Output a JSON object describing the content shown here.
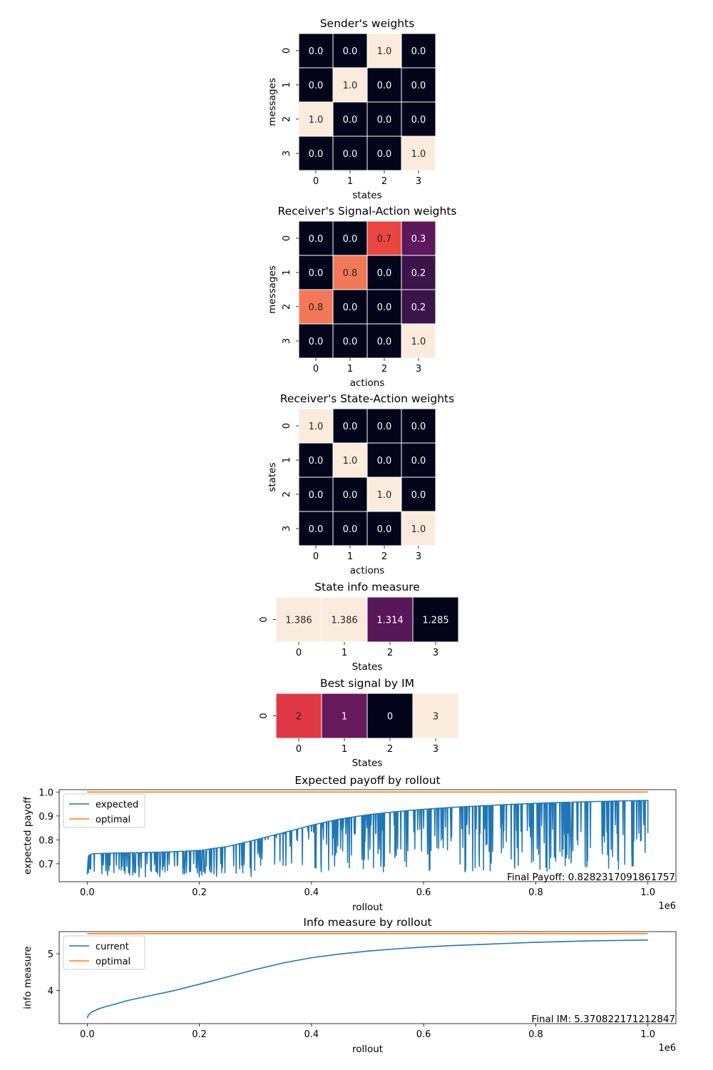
{
  "chart_data": [
    {
      "type": "heatmap",
      "title": "Sender's weights",
      "xlabel": "states",
      "ylabel": "messages",
      "xticks": [
        "0",
        "1",
        "2",
        "3"
      ],
      "yticks": [
        "0",
        "1",
        "2",
        "3"
      ],
      "decimals": 1,
      "values": [
        [
          0.0,
          0.0,
          1.0,
          0.0
        ],
        [
          0.0,
          1.0,
          0.0,
          0.0
        ],
        [
          1.0,
          0.0,
          0.0,
          0.0
        ],
        [
          0.0,
          0.0,
          0.0,
          1.0
        ]
      ],
      "labels": [
        [
          "0.0",
          "0.0",
          "1.0",
          "0.0"
        ],
        [
          "0.0",
          "1.0",
          "0.0",
          "0.0"
        ],
        [
          "1.0",
          "0.0",
          "0.0",
          "0.0"
        ],
        [
          "0.0",
          "0.0",
          "0.0",
          "1.0"
        ]
      ]
    },
    {
      "type": "heatmap",
      "title": "Receiver's Signal-Action weights",
      "xlabel": "actions",
      "ylabel": "messages",
      "xticks": [
        "0",
        "1",
        "2",
        "3"
      ],
      "yticks": [
        "0",
        "1",
        "2",
        "3"
      ],
      "decimals": 1,
      "values": [
        [
          0.0,
          0.0,
          0.7,
          0.3
        ],
        [
          0.0,
          0.8,
          0.0,
          0.2
        ],
        [
          0.8,
          0.0,
          0.0,
          0.2
        ],
        [
          0.0,
          0.0,
          0.0,
          1.0
        ]
      ],
      "labels": [
        [
          "0.0",
          "0.0",
          "0.7",
          "0.3"
        ],
        [
          "0.0",
          "0.8",
          "0.0",
          "0.2"
        ],
        [
          "0.8",
          "0.0",
          "0.0",
          "0.2"
        ],
        [
          "0.0",
          "0.0",
          "0.0",
          "1.0"
        ]
      ]
    },
    {
      "type": "heatmap",
      "title": "Receiver's State-Action weights",
      "xlabel": "actions",
      "ylabel": "states",
      "xticks": [
        "0",
        "1",
        "2",
        "3"
      ],
      "yticks": [
        "0",
        "1",
        "2",
        "3"
      ],
      "decimals": 1,
      "values": [
        [
          1.0,
          0.0,
          0.0,
          0.0
        ],
        [
          0.0,
          1.0,
          0.0,
          0.0
        ],
        [
          0.0,
          0.0,
          1.0,
          0.0
        ],
        [
          0.0,
          0.0,
          0.0,
          1.0
        ]
      ],
      "labels": [
        [
          "1.0",
          "0.0",
          "0.0",
          "0.0"
        ],
        [
          "0.0",
          "1.0",
          "0.0",
          "0.0"
        ],
        [
          "0.0",
          "0.0",
          "1.0",
          "0.0"
        ],
        [
          "0.0",
          "0.0",
          "0.0",
          "1.0"
        ]
      ]
    },
    {
      "type": "heatmap",
      "title": "State info measure",
      "xlabel": "States",
      "ylabel": "",
      "xticks": [
        "0",
        "1",
        "2",
        "3"
      ],
      "yticks": [
        "0"
      ],
      "decimals": 3,
      "values": [
        [
          1.386,
          1.386,
          1.314,
          1.285
        ]
      ],
      "labels": [
        [
          "1.386",
          "1.386",
          "1.314",
          "1.285"
        ]
      ]
    },
    {
      "type": "heatmap",
      "title": "Best signal by IM",
      "xlabel": "States",
      "ylabel": "",
      "xticks": [
        "0",
        "1",
        "2",
        "3"
      ],
      "yticks": [
        "0"
      ],
      "decimals": 0,
      "values": [
        [
          2,
          1,
          0,
          3
        ]
      ],
      "labels": [
        [
          "2",
          "1",
          "0",
          "3"
        ]
      ]
    },
    {
      "type": "line",
      "title": "Expected payoff by rollout",
      "xlabel": "rollout",
      "ylabel": "expected payoff",
      "x_offset_label": "1e6",
      "xlim": [
        -0.05,
        1.05
      ],
      "ylim": [
        0.625,
        1.01
      ],
      "xticks": [
        0.0,
        0.2,
        0.4,
        0.6,
        0.8,
        1.0
      ],
      "xtick_labels": [
        "0.0",
        "0.2",
        "0.4",
        "0.6",
        "0.8",
        "1.0"
      ],
      "yticks": [
        0.7,
        0.8,
        0.9,
        1.0
      ],
      "ytick_labels": [
        "0.7",
        "0.8",
        "0.9",
        "1.0"
      ],
      "legend_position": "upper left",
      "annotation": "Final Payoff: 0.8282317091861757",
      "series": [
        {
          "name": "expected",
          "color": "#1f77b4",
          "trend": [
            [
              0.0,
              0.655
            ],
            [
              0.002,
              0.735
            ],
            [
              0.01,
              0.742
            ],
            [
              0.05,
              0.745
            ],
            [
              0.1,
              0.747
            ],
            [
              0.15,
              0.75
            ],
            [
              0.2,
              0.756
            ],
            [
              0.25,
              0.772
            ],
            [
              0.3,
              0.8
            ],
            [
              0.35,
              0.83
            ],
            [
              0.4,
              0.861
            ],
            [
              0.45,
              0.887
            ],
            [
              0.5,
              0.905
            ],
            [
              0.55,
              0.918
            ],
            [
              0.6,
              0.928
            ],
            [
              0.65,
              0.936
            ],
            [
              0.7,
              0.942
            ],
            [
              0.75,
              0.948
            ],
            [
              0.8,
              0.953
            ],
            [
              0.85,
              0.957
            ],
            [
              0.9,
              0.96
            ],
            [
              0.95,
              0.963
            ],
            [
              1.0,
              0.965
            ]
          ],
          "dip_region_1": {
            "x_range": [
              0.0,
              0.3
            ],
            "count": 110,
            "min": 0.645,
            "max": 0.7
          },
          "dip_region_2": {
            "x_range": [
              0.3,
              1.0
            ],
            "count": 230,
            "min": 0.665,
            "max": 0.87
          },
          "final_value": 0.8282317091861757
        },
        {
          "name": "optimal",
          "color": "#ff7f0e",
          "x": [
            0.0,
            1.0
          ],
          "y": [
            1.0,
            1.0
          ]
        }
      ]
    },
    {
      "type": "line",
      "title": "Info measure by rollout",
      "xlabel": "rollout",
      "ylabel": "info measure",
      "x_offset_label": "1e6",
      "xlim": [
        -0.05,
        1.05
      ],
      "ylim": [
        3.1,
        5.6
      ],
      "xticks": [
        0.0,
        0.2,
        0.4,
        0.6,
        0.8,
        1.0
      ],
      "xtick_labels": [
        "0.0",
        "0.2",
        "0.4",
        "0.6",
        "0.8",
        "1.0"
      ],
      "yticks": [
        4,
        5
      ],
      "ytick_labels": [
        "4",
        "5"
      ],
      "legend_position": "upper left",
      "annotation": "Final IM: 5.370822171212847",
      "series": [
        {
          "name": "current",
          "color": "#1f77b4",
          "x": [
            0.0,
            0.002,
            0.005,
            0.01,
            0.02,
            0.03,
            0.05,
            0.07,
            0.1,
            0.15,
            0.2,
            0.25,
            0.3,
            0.35,
            0.4,
            0.45,
            0.5,
            0.55,
            0.6,
            0.65,
            0.7,
            0.75,
            0.8,
            0.85,
            0.9,
            0.95,
            1.0
          ],
          "y": [
            3.25,
            3.33,
            3.38,
            3.43,
            3.5,
            3.55,
            3.63,
            3.72,
            3.82,
            3.98,
            4.17,
            4.37,
            4.57,
            4.75,
            4.89,
            4.99,
            5.07,
            5.13,
            5.18,
            5.22,
            5.25,
            5.28,
            5.31,
            5.33,
            5.35,
            5.36,
            5.371
          ]
        },
        {
          "name": "optimal",
          "color": "#ff7f0e",
          "x": [
            0.0,
            1.0
          ],
          "y": [
            5.545,
            5.545
          ]
        }
      ]
    }
  ]
}
